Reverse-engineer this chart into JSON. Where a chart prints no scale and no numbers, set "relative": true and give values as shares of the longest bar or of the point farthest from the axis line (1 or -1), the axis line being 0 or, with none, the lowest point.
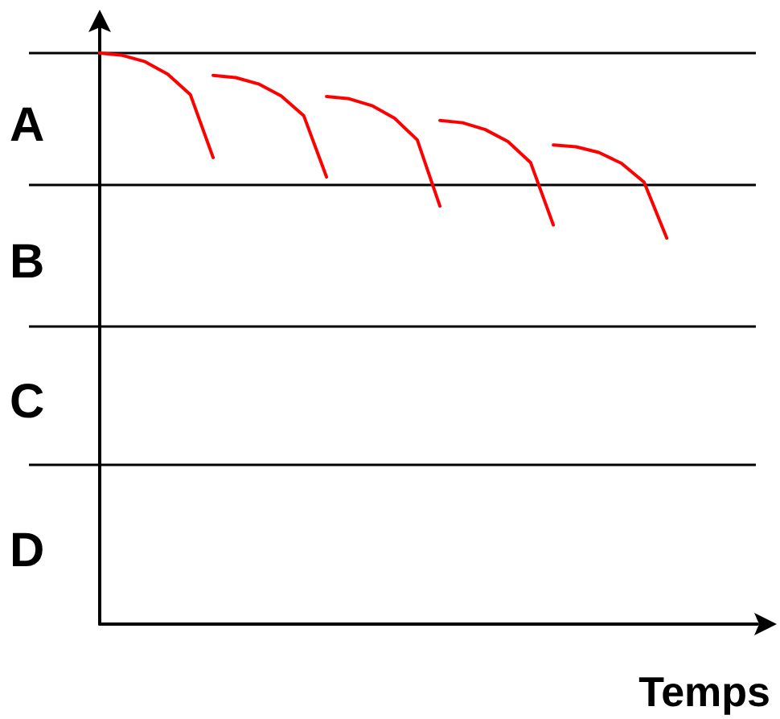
{
  "chart_data": {
    "type": "line",
    "relative": true,
    "xlabel": "Temps",
    "marker": "none",
    "line_style": "solid",
    "categories": [
      null,
      null,
      null,
      null,
      null,
      null,
      null,
      null,
      null,
      null,
      null,
      null,
      null,
      null,
      null,
      null,
      null,
      null,
      null,
      null,
      null,
      null,
      null,
      null,
      null,
      null,
      null,
      null,
      null,
      null
    ],
    "series": [
      {
        "color": "#ff0000",
        "values": [
          1,
          0.996,
          0.985,
          0.963,
          0.927,
          0.817,
          null,
          null,
          null,
          null,
          null,
          null,
          null,
          null,
          null,
          null,
          null,
          null,
          null,
          null,
          null,
          null,
          null,
          null,
          null,
          null,
          null,
          null,
          null,
          null
        ]
      },
      {
        "color": "#ff0000",
        "values": [
          null,
          null,
          null,
          null,
          null,
          0.961,
          0.957,
          0.946,
          0.925,
          0.89,
          0.783,
          null,
          null,
          null,
          null,
          null,
          null,
          null,
          null,
          null,
          null,
          null,
          null,
          null,
          null,
          null,
          null,
          null,
          null,
          null
        ]
      },
      {
        "color": "#ff0000",
        "values": [
          null,
          null,
          null,
          null,
          null,
          null,
          null,
          null,
          null,
          null,
          0.924,
          0.92,
          0.908,
          0.886,
          0.848,
          0.732,
          null,
          null,
          null,
          null,
          null,
          null,
          null,
          null,
          null,
          null,
          null,
          null,
          null,
          null
        ]
      },
      {
        "color": "#ff0000",
        "values": [
          null,
          null,
          null,
          null,
          null,
          null,
          null,
          null,
          null,
          null,
          null,
          null,
          null,
          null,
          null,
          0.882,
          0.878,
          0.866,
          0.845,
          0.808,
          0.699,
          null,
          null,
          null,
          null,
          null,
          null,
          null,
          null,
          null
        ]
      },
      {
        "color": "#ff0000",
        "values": [
          null,
          null,
          null,
          null,
          null,
          null,
          null,
          null,
          null,
          null,
          null,
          null,
          null,
          null,
          null,
          null,
          null,
          null,
          null,
          null,
          0.839,
          0.836,
          0.826,
          0.807,
          0.774,
          0.676,
          null,
          null,
          null,
          null
        ]
      }
    ],
    "ref_lines": [
      {
        "axis": "y",
        "value": 1,
        "color": "#000000"
      },
      {
        "axis": "y",
        "value": 0.769,
        "color": "#000000"
      },
      {
        "axis": "y",
        "value": 0.521,
        "color": "#000000"
      },
      {
        "axis": "y",
        "value": 0.279,
        "color": "#000000"
      }
    ],
    "annotations": [
      "A",
      "B",
      "C",
      "D"
    ]
  }
}
